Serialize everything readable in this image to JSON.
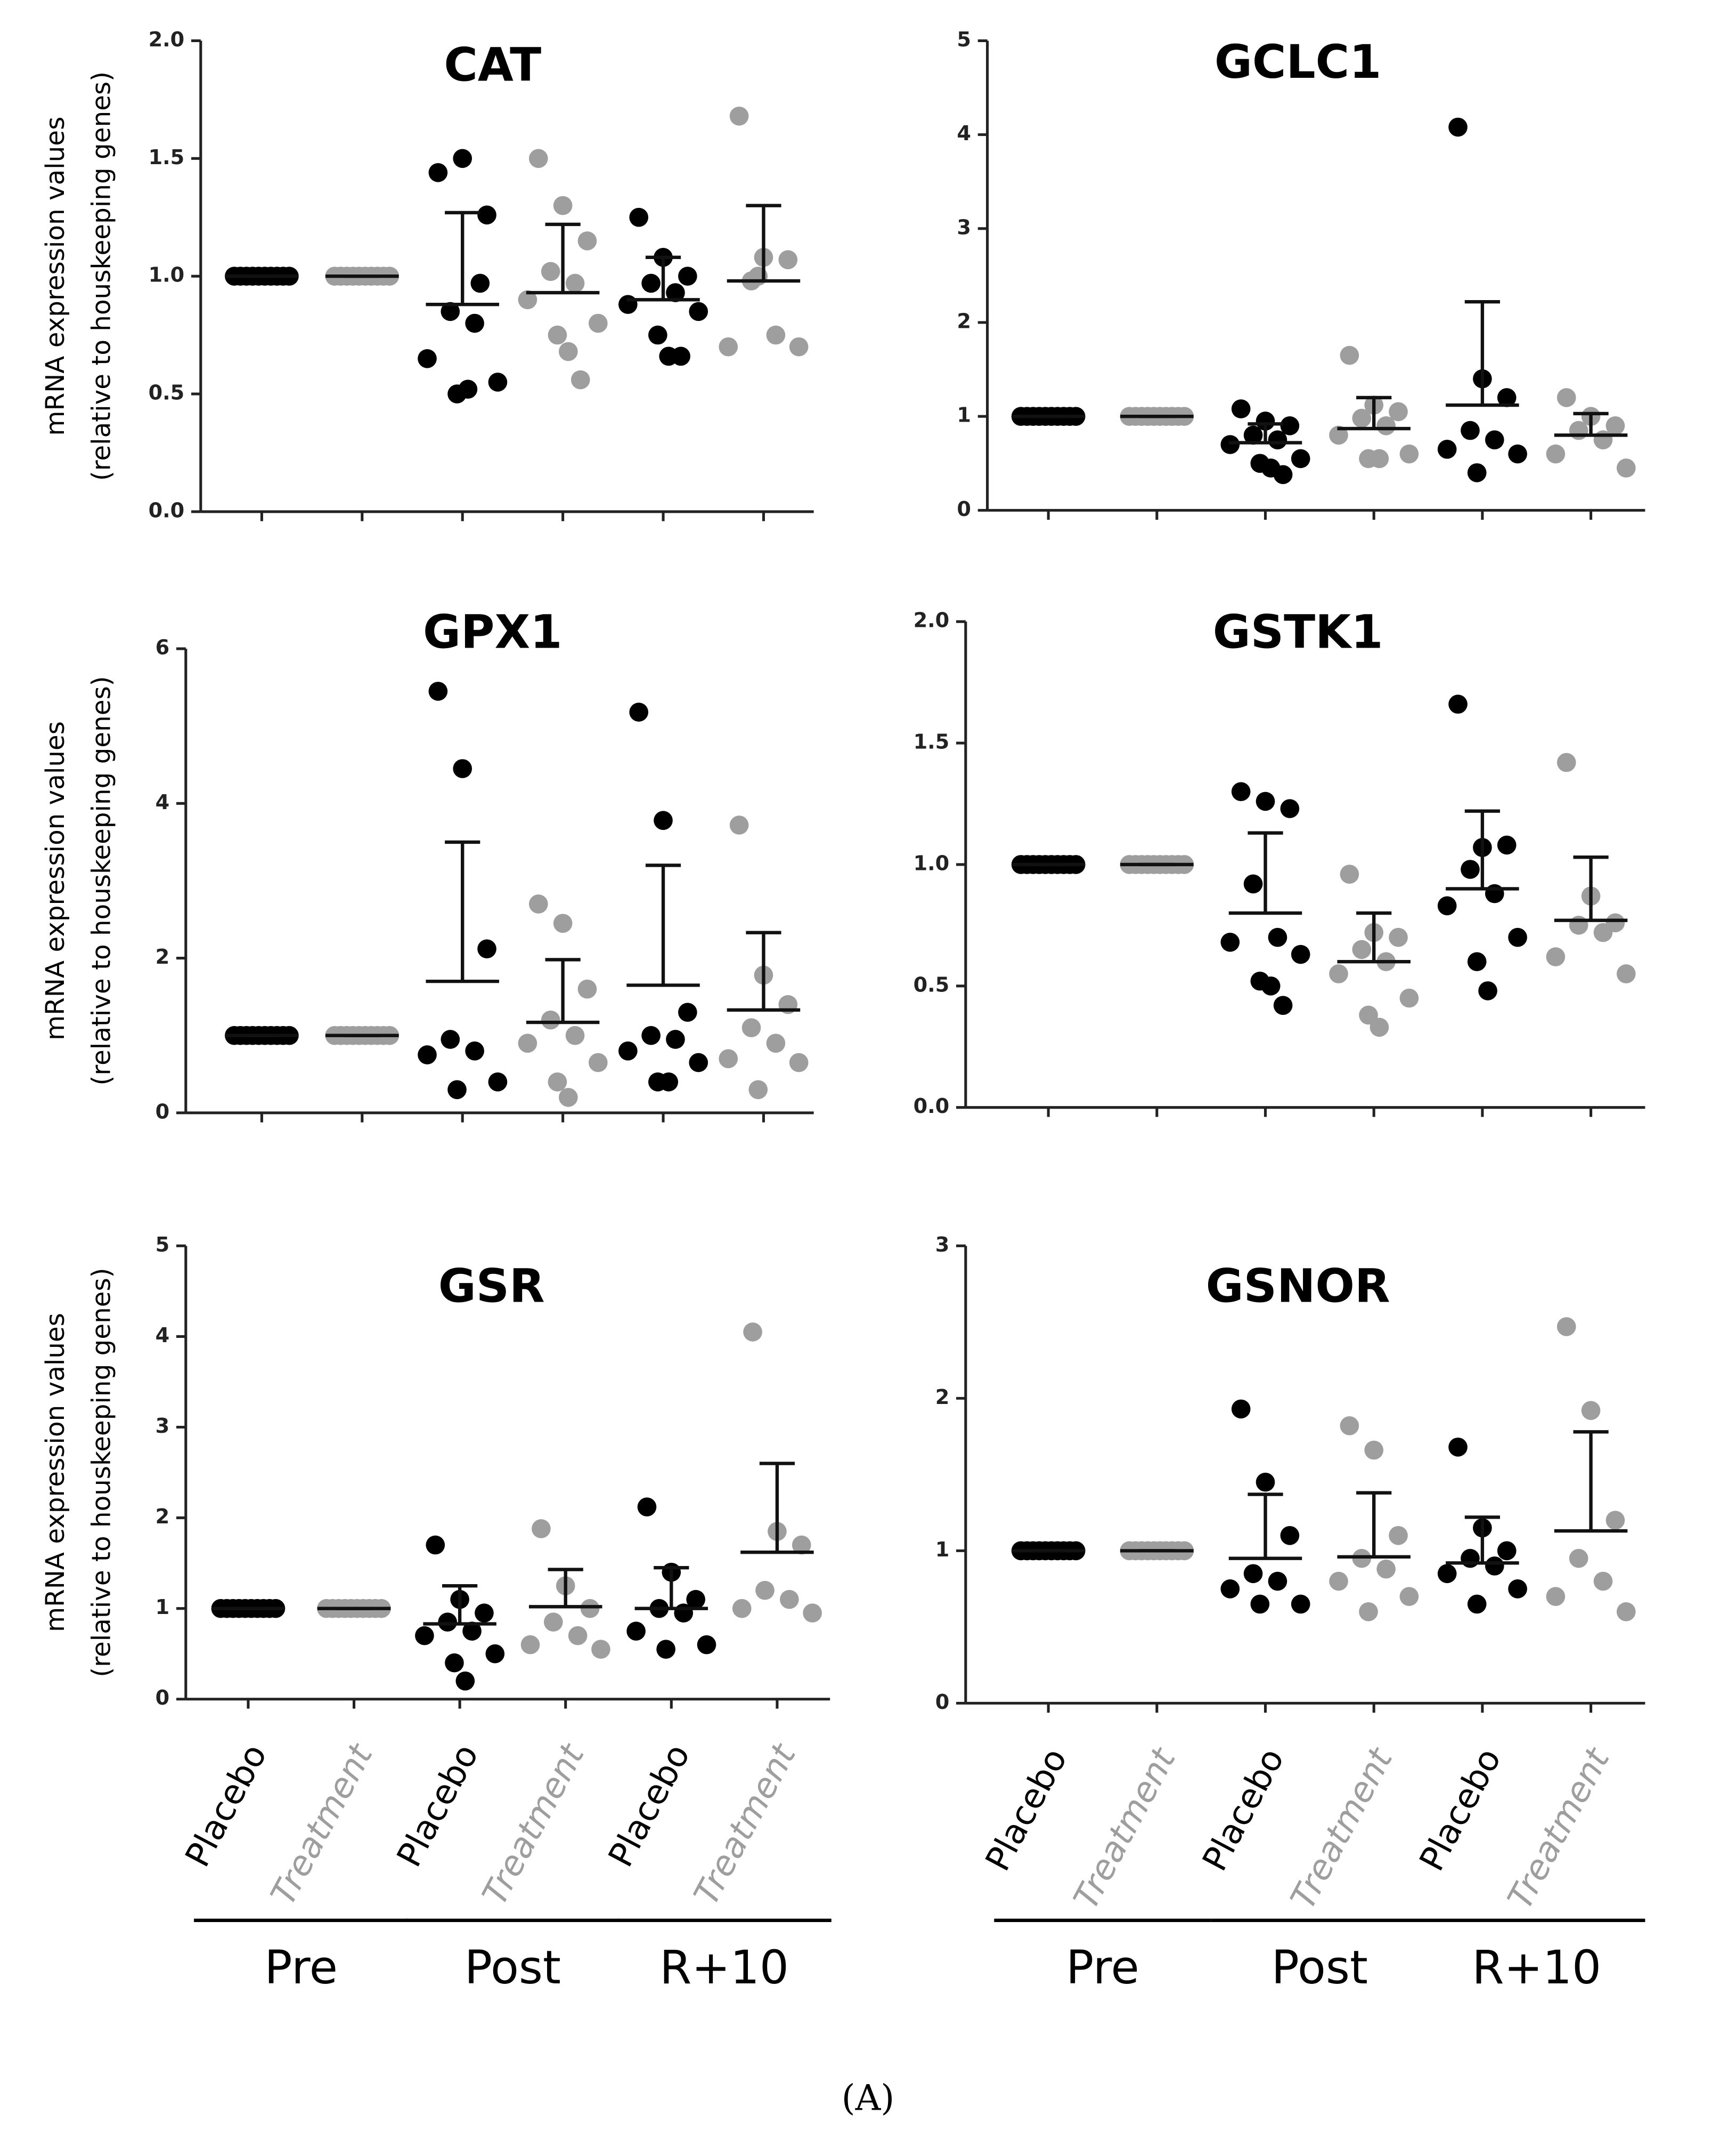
{
  "caption": "(A)",
  "chart_data": [
    {
      "type": "dot",
      "title": "CAT",
      "ylabel": [
        "mRNA expression values",
        "(relative to houskeeping genes)"
      ],
      "ylim": [
        0,
        2
      ],
      "yticks": [
        {
          "value": 0,
          "label": "0.0"
        },
        {
          "value": 0.5,
          "label": "0.5"
        },
        {
          "value": 1,
          "label": "1.0"
        },
        {
          "value": 1.5,
          "label": "1.5"
        },
        {
          "value": 2,
          "label": "2.0"
        }
      ],
      "colors": [
        "#000000",
        "#9e9e9e",
        "#000000",
        "#9e9e9e",
        "#000000",
        "#9e9e9e"
      ],
      "points": [
        [
          1,
          1,
          1,
          1,
          1,
          1,
          1,
          1,
          1,
          1
        ],
        [
          1,
          1,
          1,
          1,
          1,
          1,
          1,
          1,
          1,
          1
        ],
        [
          1.44,
          1.5,
          1.26,
          0.85,
          0.8,
          0.65,
          0.55,
          0.5,
          0.52,
          0.97
        ],
        [
          1.5,
          1.3,
          1.15,
          1.02,
          0.97,
          0.9,
          0.8,
          0.75,
          0.68,
          0.56
        ],
        [
          1.25,
          1.08,
          1,
          0.97,
          0.93,
          0.88,
          0.85,
          0.75,
          0.66,
          0.66
        ],
        [
          1.68,
          1.08,
          1.07,
          0.98,
          0.75,
          0.7,
          0.7,
          1
        ]
      ],
      "mean": [
        1,
        1,
        0.88,
        0.93,
        0.9,
        0.98
      ],
      "sd": [
        0,
        0,
        0.39,
        0.29,
        0.18,
        0.32
      ]
    },
    {
      "type": "dot",
      "title": "GCLC1",
      "ylim": [
        0,
        5
      ],
      "yticks": [
        0,
        1,
        2,
        3,
        4,
        5
      ],
      "colors": [
        "#000000",
        "#9e9e9e",
        "#000000",
        "#9e9e9e",
        "#000000",
        "#9e9e9e"
      ],
      "points": [
        [
          1,
          1,
          1,
          1,
          1,
          1,
          1,
          1,
          1,
          1
        ],
        [
          1,
          1,
          1,
          1,
          1,
          1,
          1,
          1,
          1,
          1
        ],
        [
          1.08,
          0.95,
          0.9,
          0.8,
          0.75,
          0.7,
          0.55,
          0.5,
          0.45,
          0.38
        ],
        [
          1.65,
          1.12,
          1.05,
          0.98,
          0.9,
          0.8,
          0.6,
          0.55,
          0.55
        ],
        [
          4.08,
          1.4,
          1.2,
          0.85,
          0.75,
          0.65,
          0.6,
          0.4
        ],
        [
          1.2,
          1,
          0.9,
          0.85,
          0.75,
          0.6,
          0.45
        ]
      ],
      "mean": [
        1,
        1,
        0.72,
        0.87,
        1.12,
        0.8
      ],
      "sd": [
        0,
        0,
        0.2,
        0.33,
        1.1,
        0.23
      ]
    },
    {
      "type": "dot",
      "title": "GPX1",
      "ylabel": [
        "mRNA expression values",
        "(relative to houskeeping genes)"
      ],
      "ylim": [
        0,
        6
      ],
      "yticks": [
        0,
        2,
        4,
        6
      ],
      "colors": [
        "#000000",
        "#9e9e9e",
        "#000000",
        "#9e9e9e",
        "#000000",
        "#9e9e9e"
      ],
      "points": [
        [
          1,
          1,
          1,
          1,
          1,
          1,
          1,
          1,
          1,
          1
        ],
        [
          1,
          1,
          1,
          1,
          1,
          1,
          1,
          1,
          1,
          1
        ],
        [
          5.45,
          4.45,
          2.12,
          0.95,
          0.8,
          0.75,
          0.4,
          0.3
        ],
        [
          2.7,
          2.45,
          1.6,
          1.2,
          1,
          0.9,
          0.65,
          0.4,
          0.2
        ],
        [
          5.18,
          3.78,
          1.3,
          1,
          0.95,
          0.8,
          0.65,
          0.4,
          0.4
        ],
        [
          3.72,
          1.78,
          1.4,
          1.1,
          0.9,
          0.7,
          0.65,
          0.3
        ]
      ],
      "mean": [
        1,
        1,
        1.7,
        1.17,
        1.65,
        1.33
      ],
      "sd": [
        0,
        0,
        1.8,
        0.81,
        1.55,
        1
      ]
    },
    {
      "type": "dot",
      "title": "GSTK1",
      "ylim": [
        0,
        2
      ],
      "yticks": [
        {
          "value": 0,
          "label": "0.0"
        },
        {
          "value": 0.5,
          "label": "0.5"
        },
        {
          "value": 1,
          "label": "1.0"
        },
        {
          "value": 1.5,
          "label": "1.5"
        },
        {
          "value": 2,
          "label": "2.0"
        }
      ],
      "colors": [
        "#000000",
        "#9e9e9e",
        "#000000",
        "#9e9e9e",
        "#000000",
        "#9e9e9e"
      ],
      "points": [
        [
          1,
          1,
          1,
          1,
          1,
          1,
          1,
          1,
          1,
          1
        ],
        [
          1,
          1,
          1,
          1,
          1,
          1,
          1,
          1,
          1,
          1
        ],
        [
          1.3,
          1.26,
          1.23,
          0.92,
          0.7,
          0.68,
          0.63,
          0.52,
          0.5,
          0.42
        ],
        [
          0.96,
          0.72,
          0.7,
          0.65,
          0.6,
          0.55,
          0.45,
          0.38,
          0.33
        ],
        [
          1.66,
          1.07,
          1.08,
          0.98,
          0.88,
          0.83,
          0.7,
          0.6,
          0.48
        ],
        [
          1.42,
          0.87,
          0.76,
          0.75,
          0.72,
          0.62,
          0.55
        ]
      ],
      "mean": [
        1,
        1,
        0.8,
        0.6,
        0.9,
        0.77
      ],
      "sd": [
        0,
        0,
        0.33,
        0.2,
        0.32,
        0.26
      ]
    },
    {
      "type": "dot",
      "title": "GSR",
      "ylabel": [
        "mRNA expression values",
        "(relative to houskeeping genes)"
      ],
      "ylim": [
        0,
        5
      ],
      "yticks": [
        0,
        1,
        2,
        3,
        4,
        5
      ],
      "colors": [
        "#000000",
        "#9e9e9e",
        "#000000",
        "#9e9e9e",
        "#000000",
        "#9e9e9e"
      ],
      "categories": [
        "Placebo",
        "Treatment",
        "Placebo",
        "Treatment",
        "Placebo",
        "Treatment"
      ],
      "groups": [
        "Pre",
        "Post",
        "R+10"
      ],
      "points": [
        [
          1,
          1,
          1,
          1,
          1,
          1,
          1,
          1,
          1,
          1
        ],
        [
          1,
          1,
          1,
          1,
          1,
          1,
          1,
          1,
          1,
          1
        ],
        [
          1.7,
          1.1,
          0.95,
          0.85,
          0.75,
          0.7,
          0.5,
          0.4,
          0.2
        ],
        [
          1.88,
          1.25,
          1,
          0.85,
          0.7,
          0.6,
          0.55
        ],
        [
          2.12,
          1.4,
          1.1,
          1,
          0.95,
          0.75,
          0.6,
          0.55
        ],
        [
          4.05,
          1.85,
          1.7,
          1.2,
          1.1,
          1,
          0.95
        ]
      ],
      "mean": [
        1,
        1,
        0.83,
        1.02,
        1,
        1.62
      ],
      "sd": [
        0,
        0,
        0.42,
        0.41,
        0.45,
        0.98
      ]
    },
    {
      "type": "dot",
      "title": "GSNOR",
      "ylim": [
        0,
        3
      ],
      "yticks": [
        0,
        1,
        2,
        3
      ],
      "colors": [
        "#000000",
        "#9e9e9e",
        "#000000",
        "#9e9e9e",
        "#000000",
        "#9e9e9e"
      ],
      "categories": [
        "Placebo",
        "Treatment",
        "Placebo",
        "Treatment",
        "Placebo",
        "Treatment"
      ],
      "groups": [
        "Pre",
        "Post",
        "R+10"
      ],
      "points": [
        [
          1,
          1,
          1,
          1,
          1,
          1,
          1,
          1,
          1,
          1
        ],
        [
          1,
          1,
          1,
          1,
          1,
          1,
          1,
          1,
          1,
          1
        ],
        [
          1.93,
          1.45,
          1.1,
          0.85,
          0.8,
          0.75,
          0.65,
          0.65
        ],
        [
          1.82,
          1.66,
          1.1,
          0.95,
          0.88,
          0.8,
          0.7,
          0.6
        ],
        [
          1.68,
          1.15,
          1,
          0.95,
          0.9,
          0.85,
          0.75,
          0.65
        ],
        [
          2.47,
          1.92,
          1.2,
          0.95,
          0.8,
          0.7,
          0.6
        ]
      ],
      "mean": [
        1,
        1,
        0.95,
        0.96,
        0.92,
        1.13
      ],
      "sd": [
        0,
        0,
        0.42,
        0.42,
        0.3,
        0.65
      ]
    }
  ]
}
